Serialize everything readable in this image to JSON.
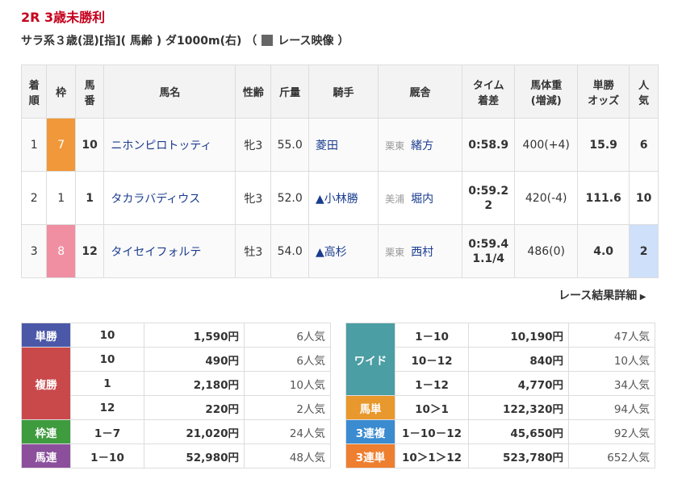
{
  "header": {
    "title": "2R 3歳未勝利",
    "subtitle": "サラ系３歳(混)[指]( 馬齢 ) ダ1000m(右)",
    "open": "（",
    "video": "レース映像",
    "close": "）"
  },
  "results": {
    "headers": [
      "着\n順",
      "枠",
      "馬\n番",
      "馬名",
      "性齢",
      "斤量",
      "騎手",
      "厩舎",
      "タイム\n着差",
      "馬体重\n(増減)",
      "単勝\nオッズ",
      "人\n気"
    ],
    "rows": [
      {
        "rank": "1",
        "waku": "7",
        "waku_color": "#f0983a",
        "num": "10",
        "name": "ニホンピロトッティ",
        "sex_age": "牝3",
        "weight": "55.0",
        "jockey": "菱田",
        "region": "栗東",
        "trainer": "緒方",
        "time": "0:58.9",
        "body": "400(+4)",
        "odds": "15.9",
        "pop": "6"
      },
      {
        "rank": "2",
        "waku": "1",
        "num": "1",
        "name": "タカラバディウス",
        "sex_age": "牝3",
        "weight": "52.0",
        "jockey": "▲小林勝",
        "region": "美浦",
        "trainer": "堀内",
        "time": "0:59.2",
        "margin": "2",
        "body": "420(-4)",
        "odds": "111.6",
        "pop": "10"
      },
      {
        "rank": "3",
        "waku": "8",
        "waku_color": "#ef8fa1",
        "num": "12",
        "name": "タイセイフォルテ",
        "sex_age": "牡3",
        "weight": "54.0",
        "jockey": "▲高杉",
        "region": "栗東",
        "trainer": "西村",
        "time": "0:59.4",
        "margin": "1.1/4",
        "body": "486(0)",
        "odds": "4.0",
        "pop": "2",
        "pop_color": "#cfe0fb"
      }
    ]
  },
  "detail_link": "レース結果詳細",
  "payouts": {
    "left": [
      {
        "label": "単勝",
        "color": "#4b58a8",
        "rows": [
          [
            "10",
            "1,590円",
            "6人気"
          ]
        ]
      },
      {
        "label": "複勝",
        "color": "#c9494b",
        "rows": [
          [
            "10",
            "490円",
            "6人気"
          ],
          [
            "1",
            "2,180円",
            "10人気"
          ],
          [
            "12",
            "220円",
            "2人気"
          ]
        ]
      },
      {
        "label": "枠連",
        "color": "#3e9b3e",
        "rows": [
          [
            "1－7",
            "21,020円",
            "24人気"
          ]
        ]
      },
      {
        "label": "馬連",
        "color": "#8b4f9c",
        "rows": [
          [
            "1－10",
            "52,980円",
            "48人気"
          ]
        ]
      }
    ],
    "right": [
      {
        "label": "ワイド",
        "color": "#4b9ea3",
        "rows": [
          [
            "1－10",
            "10,190円",
            "47人気"
          ],
          [
            "10－12",
            "840円",
            "10人気"
          ],
          [
            "1－12",
            "4,770円",
            "34人気"
          ]
        ]
      },
      {
        "label": "馬単",
        "color": "#e8982c",
        "rows": [
          [
            "10＞1",
            "122,320円",
            "94人気"
          ]
        ]
      },
      {
        "label": "3連複",
        "color": "#3b8bd0",
        "rows": [
          [
            "1－10－12",
            "45,650円",
            "92人気"
          ]
        ]
      },
      {
        "label": "3連単",
        "color": "#ee7f31",
        "rows": [
          [
            "10＞1＞12",
            "523,780円",
            "652人気"
          ]
        ]
      }
    ]
  }
}
